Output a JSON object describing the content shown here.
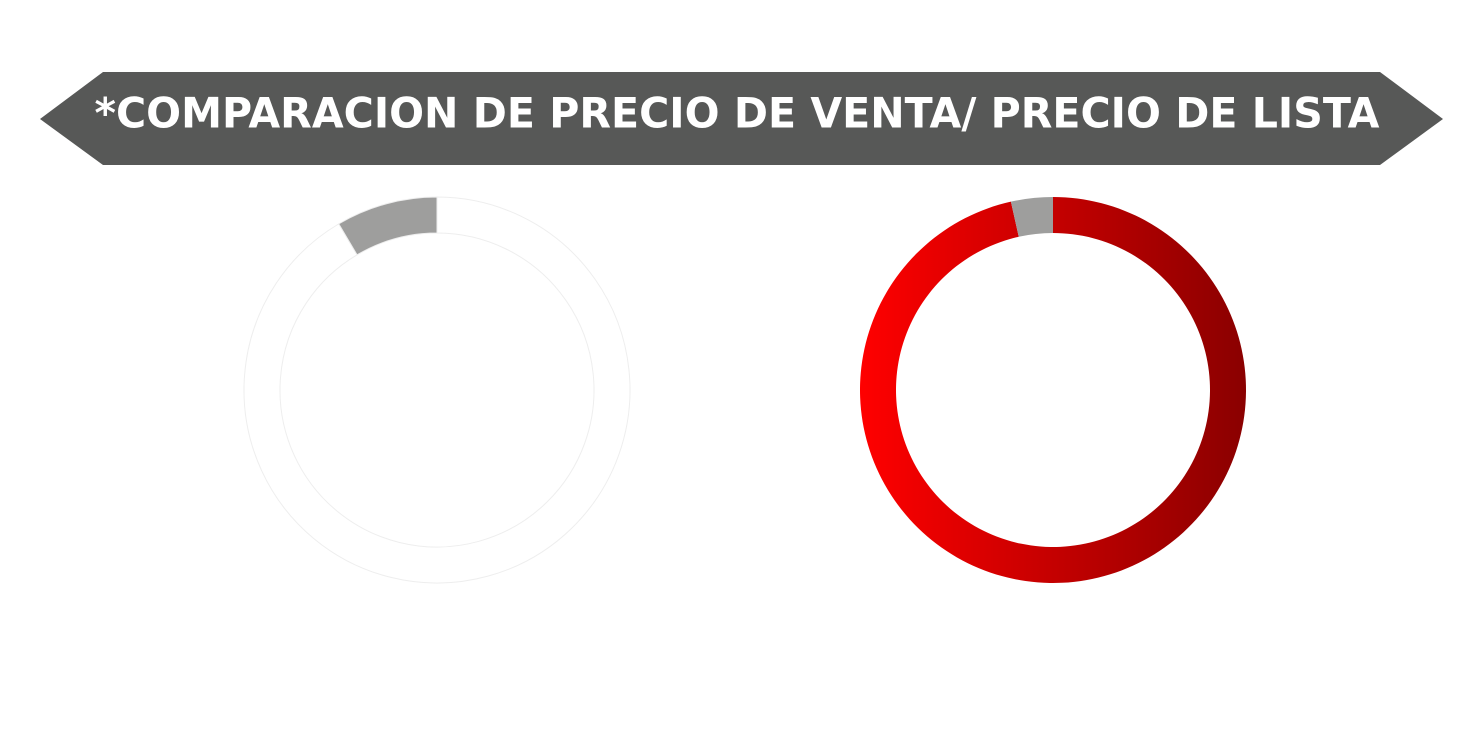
{
  "header": {
    "title": "*COMPARACION DE PRECIO DE VENTA/ PRECIO DE LISTA"
  },
  "chart_data": [
    {
      "type": "donut",
      "values": [
        91.5,
        8.5
      ],
      "colors": [
        "#ffffff",
        "#9e9e9d"
      ],
      "outline": "#eeeeee"
    },
    {
      "type": "donut",
      "values": [
        96.5,
        3.5
      ],
      "colors": [
        "#e00000",
        "#9e9e9d"
      ],
      "gradient": [
        "#ff0000",
        "#8a0000"
      ]
    }
  ]
}
